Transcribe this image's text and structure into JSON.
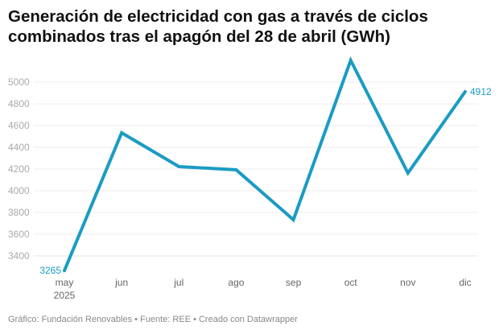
{
  "title": "Generación de electricidad con gas a través de ciclos combinados tras el apagón del 28 de abril (GWh)",
  "footer": "Gráfico: Fundación Renovables • Fuente: REE • Creado con Datawrapper",
  "chart_data": {
    "type": "line",
    "title": "Generación de electricidad con gas a través de ciclos combinados tras el apagón del 28 de abril (GWh)",
    "categories": [
      "may",
      "jun",
      "jul",
      "ago",
      "sep",
      "oct",
      "nov",
      "dic"
    ],
    "x_sublabel_first": "2025",
    "values": [
      3265,
      4533,
      4222,
      4193,
      3733,
      5200,
      4163,
      4912
    ],
    "data_labels": [
      {
        "index": 0,
        "text": "3265"
      },
      {
        "index": 7,
        "text": "4912"
      }
    ],
    "yticks": [
      3400,
      3600,
      3800,
      4000,
      4200,
      4400,
      4600,
      4800,
      5000
    ],
    "ylim": [
      3265,
      5200
    ],
    "grid": true,
    "line_color": "#1b9bc4"
  }
}
